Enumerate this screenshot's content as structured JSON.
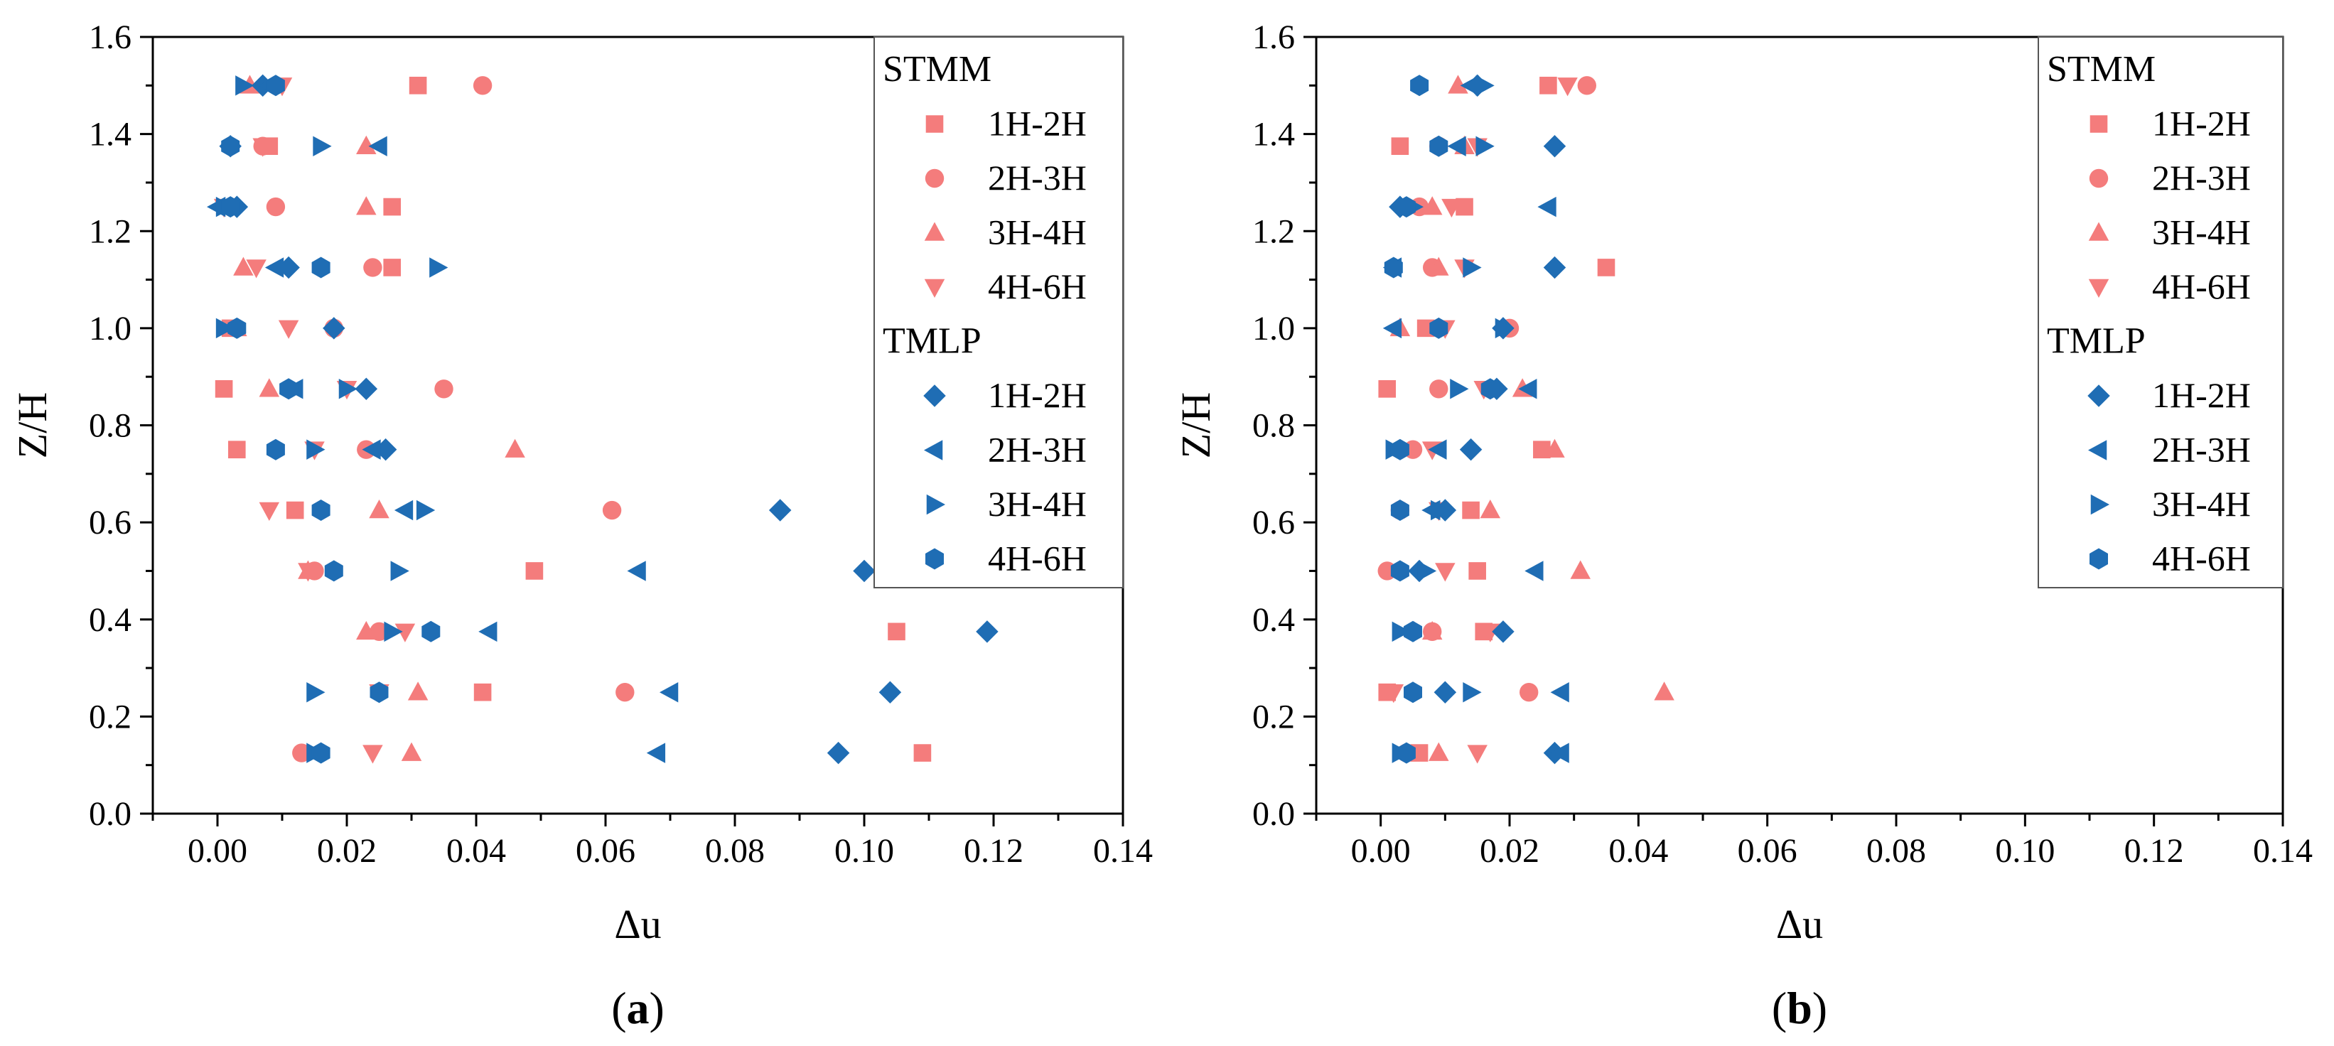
{
  "colors": {
    "stmm": "#F47C7C",
    "tmlp": "#1F6DB4",
    "axis": "#000000"
  },
  "legend": {
    "groups": [
      {
        "title": "STMM",
        "color": "#F47C7C",
        "items": [
          {
            "label": "1H-2H",
            "marker": "square"
          },
          {
            "label": "2H-3H",
            "marker": "circle"
          },
          {
            "label": "3H-4H",
            "marker": "triangle-up"
          },
          {
            "label": "4H-6H",
            "marker": "triangle-down"
          }
        ]
      },
      {
        "title": "TMLP",
        "color": "#1F6DB4",
        "items": [
          {
            "label": "1H-2H",
            "marker": "diamond"
          },
          {
            "label": "2H-3H",
            "marker": "triangle-left"
          },
          {
            "label": "3H-4H",
            "marker": "triangle-right"
          },
          {
            "label": "4H-6H",
            "marker": "hexagon"
          }
        ]
      }
    ]
  },
  "chart_data": [
    {
      "type": "scatter",
      "panel_label": "a",
      "xlabel": "Δu",
      "ylabel": "Z/H",
      "xlim": [
        -0.01,
        0.14
      ],
      "ylim": [
        0.0,
        1.6
      ],
      "xticks": [
        "0.00",
        "0.02",
        "0.04",
        "0.06",
        "0.08",
        "0.10",
        "0.12",
        "0.14"
      ],
      "yticks": [
        "0.0",
        "0.2",
        "0.4",
        "0.6",
        "0.8",
        "1.0",
        "1.2",
        "1.4",
        "1.6"
      ],
      "legend_position": "top-right",
      "z": [
        0.125,
        0.25,
        0.375,
        0.5,
        0.625,
        0.75,
        0.875,
        1.0,
        1.125,
        1.25,
        1.375,
        1.5
      ],
      "series": [
        {
          "group": "STMM",
          "name": "1H-2H",
          "values": [
            0.109,
            0.041,
            0.105,
            0.049,
            0.012,
            0.003,
            0.001,
            0.002,
            0.027,
            0.027,
            0.008,
            0.031
          ]
        },
        {
          "group": "STMM",
          "name": "2H-3H",
          "values": [
            0.013,
            0.063,
            0.025,
            0.015,
            0.061,
            0.023,
            0.035,
            0.018,
            0.024,
            0.009,
            0.007,
            0.041
          ]
        },
        {
          "group": "STMM",
          "name": "3H-4H",
          "values": [
            0.03,
            0.031,
            0.023,
            0.014,
            0.025,
            0.046,
            0.008,
            0.003,
            0.004,
            0.023,
            0.023,
            0.005
          ]
        },
        {
          "group": "STMM",
          "name": "4H-6H",
          "values": [
            0.024,
            0.025,
            0.029,
            0.014,
            0.008,
            0.015,
            0.02,
            0.011,
            0.006,
            0.001,
            0.007,
            0.01
          ]
        },
        {
          "group": "TMLP",
          "name": "1H-2H",
          "values": [
            0.096,
            0.104,
            0.119,
            0.1,
            0.087,
            0.026,
            0.023,
            0.018,
            0.011,
            0.003,
            0.002,
            0.007
          ]
        },
        {
          "group": "TMLP",
          "name": "2H-3H",
          "values": [
            0.068,
            0.07,
            0.042,
            0.065,
            0.029,
            0.024,
            0.012,
            0.002,
            0.009,
            0.0,
            0.025,
            0.008
          ]
        },
        {
          "group": "TMLP",
          "name": "3H-4H",
          "values": [
            0.015,
            0.015,
            0.027,
            0.028,
            0.032,
            0.015,
            0.02,
            0.001,
            0.034,
            0.001,
            0.016,
            0.004
          ]
        },
        {
          "group": "TMLP",
          "name": "4H-6H",
          "values": [
            0.016,
            0.025,
            0.033,
            0.018,
            0.016,
            0.009,
            0.011,
            0.003,
            0.016,
            0.002,
            0.002,
            0.009
          ]
        }
      ]
    },
    {
      "type": "scatter",
      "panel_label": "b",
      "xlabel": "Δu",
      "ylabel": "Z/H",
      "xlim": [
        -0.01,
        0.14
      ],
      "ylim": [
        0.0,
        1.6
      ],
      "xticks": [
        "0.00",
        "0.02",
        "0.04",
        "0.06",
        "0.08",
        "0.10",
        "0.12",
        "0.14"
      ],
      "yticks": [
        "0.0",
        "0.2",
        "0.4",
        "0.6",
        "0.8",
        "1.0",
        "1.2",
        "1.4",
        "1.6"
      ],
      "legend_position": "top-right",
      "z": [
        0.125,
        0.25,
        0.375,
        0.5,
        0.625,
        0.75,
        0.875,
        1.0,
        1.125,
        1.25,
        1.375,
        1.5
      ],
      "series": [
        {
          "group": "STMM",
          "name": "1H-2H",
          "values": [
            0.006,
            0.001,
            0.016,
            0.015,
            0.014,
            0.025,
            0.001,
            0.007,
            0.035,
            0.013,
            0.003,
            0.026
          ]
        },
        {
          "group": "STMM",
          "name": "2H-3H",
          "values": [
            0.004,
            0.023,
            0.008,
            0.001,
            0.003,
            0.005,
            0.009,
            0.02,
            0.008,
            0.006,
            0.009,
            0.032
          ]
        },
        {
          "group": "STMM",
          "name": "3H-4H",
          "values": [
            0.009,
            0.044,
            0.008,
            0.031,
            0.017,
            0.027,
            0.022,
            0.003,
            0.009,
            0.008,
            0.013,
            0.012
          ]
        },
        {
          "group": "STMM",
          "name": "4H-6H",
          "values": [
            0.015,
            0.002,
            0.017,
            0.01,
            0.009,
            0.008,
            0.016,
            0.01,
            0.013,
            0.011,
            0.015,
            0.029
          ]
        },
        {
          "group": "TMLP",
          "name": "1H-2H",
          "values": [
            0.027,
            0.01,
            0.019,
            0.006,
            0.01,
            0.014,
            0.018,
            0.019,
            0.027,
            0.003,
            0.027,
            0.015
          ]
        },
        {
          "group": "TMLP",
          "name": "2H-3H",
          "values": [
            0.028,
            0.028,
            0.004,
            0.024,
            0.008,
            0.009,
            0.023,
            0.002,
            0.002,
            0.026,
            0.012,
            0.014
          ]
        },
        {
          "group": "TMLP",
          "name": "3H-4H",
          "values": [
            0.003,
            0.014,
            0.003,
            0.007,
            0.009,
            0.002,
            0.012,
            0.019,
            0.014,
            0.005,
            0.016,
            0.016
          ]
        },
        {
          "group": "TMLP",
          "name": "4H-6H",
          "values": [
            0.004,
            0.005,
            0.005,
            0.003,
            0.003,
            0.003,
            0.017,
            0.009,
            0.002,
            0.004,
            0.009,
            0.006
          ]
        }
      ]
    }
  ]
}
